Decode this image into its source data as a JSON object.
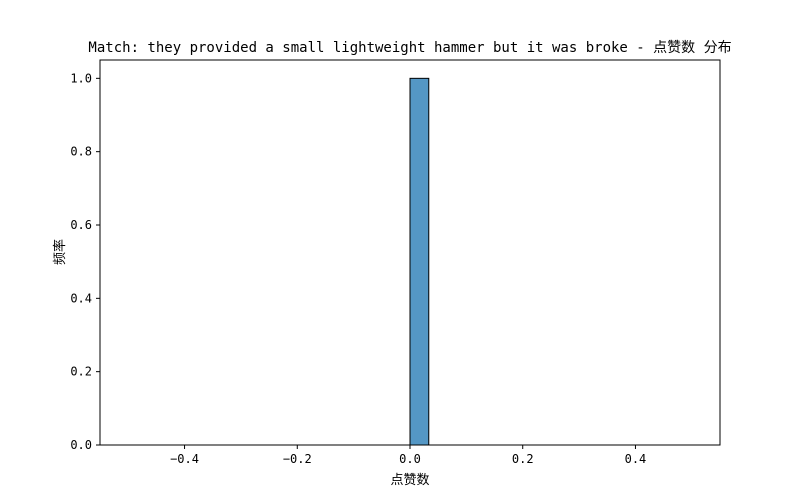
{
  "chart_data": {
    "type": "bar",
    "title": "Match: they provided a small lightweight hammer but it was broke - 点赞数 分布",
    "xlabel": "点赞数",
    "ylabel": "频率",
    "xlim": [
      -0.55,
      0.55
    ],
    "ylim": [
      0.0,
      1.05
    ],
    "x_ticks": [
      -0.4,
      -0.2,
      0.0,
      0.2,
      0.4
    ],
    "x_tick_labels": [
      "−0.4",
      "−0.2",
      "0.0",
      "0.2",
      "0.4"
    ],
    "y_ticks": [
      0.0,
      0.2,
      0.4,
      0.6,
      0.8,
      1.0
    ],
    "y_tick_labels": [
      "0.0",
      "0.2",
      "0.4",
      "0.6",
      "0.8",
      "1.0"
    ],
    "bins": [
      {
        "x0": -0.5,
        "x1": -0.4667,
        "count": 0
      },
      {
        "x0": -0.4667,
        "x1": -0.4333,
        "count": 0
      },
      {
        "x0": -0.4333,
        "x1": -0.4,
        "count": 0
      },
      {
        "x0": -0.4,
        "x1": -0.3667,
        "count": 0
      },
      {
        "x0": -0.3667,
        "x1": -0.3333,
        "count": 0
      },
      {
        "x0": -0.3333,
        "x1": -0.3,
        "count": 0
      },
      {
        "x0": -0.3,
        "x1": -0.2667,
        "count": 0
      },
      {
        "x0": -0.2667,
        "x1": -0.2333,
        "count": 0
      },
      {
        "x0": -0.2333,
        "x1": -0.2,
        "count": 0
      },
      {
        "x0": -0.2,
        "x1": -0.1667,
        "count": 0
      },
      {
        "x0": -0.1667,
        "x1": -0.1333,
        "count": 0
      },
      {
        "x0": -0.1333,
        "x1": -0.1,
        "count": 0
      },
      {
        "x0": -0.1,
        "x1": -0.0667,
        "count": 0
      },
      {
        "x0": -0.0667,
        "x1": -0.0333,
        "count": 0
      },
      {
        "x0": -0.0333,
        "x1": 0.0,
        "count": 0
      },
      {
        "x0": 0.0,
        "x1": 0.0333,
        "count": 1
      },
      {
        "x0": 0.0333,
        "x1": 0.0667,
        "count": 0
      },
      {
        "x0": 0.0667,
        "x1": 0.1,
        "count": 0
      },
      {
        "x0": 0.1,
        "x1": 0.1333,
        "count": 0
      },
      {
        "x0": 0.1333,
        "x1": 0.1667,
        "count": 0
      },
      {
        "x0": 0.1667,
        "x1": 0.2,
        "count": 0
      },
      {
        "x0": 0.2,
        "x1": 0.2333,
        "count": 0
      },
      {
        "x0": 0.2333,
        "x1": 0.2667,
        "count": 0
      },
      {
        "x0": 0.2667,
        "x1": 0.3,
        "count": 0
      },
      {
        "x0": 0.3,
        "x1": 0.3333,
        "count": 0
      },
      {
        "x0": 0.3333,
        "x1": 0.3667,
        "count": 0
      },
      {
        "x0": 0.3667,
        "x1": 0.4,
        "count": 0
      },
      {
        "x0": 0.4,
        "x1": 0.4333,
        "count": 0
      },
      {
        "x0": 0.4333,
        "x1": 0.4667,
        "count": 0
      },
      {
        "x0": 0.4667,
        "x1": 0.5,
        "count": 0
      }
    ],
    "bar_color": "#5497c5",
    "edge_color": "#000000",
    "grid": false,
    "legend": "none"
  }
}
